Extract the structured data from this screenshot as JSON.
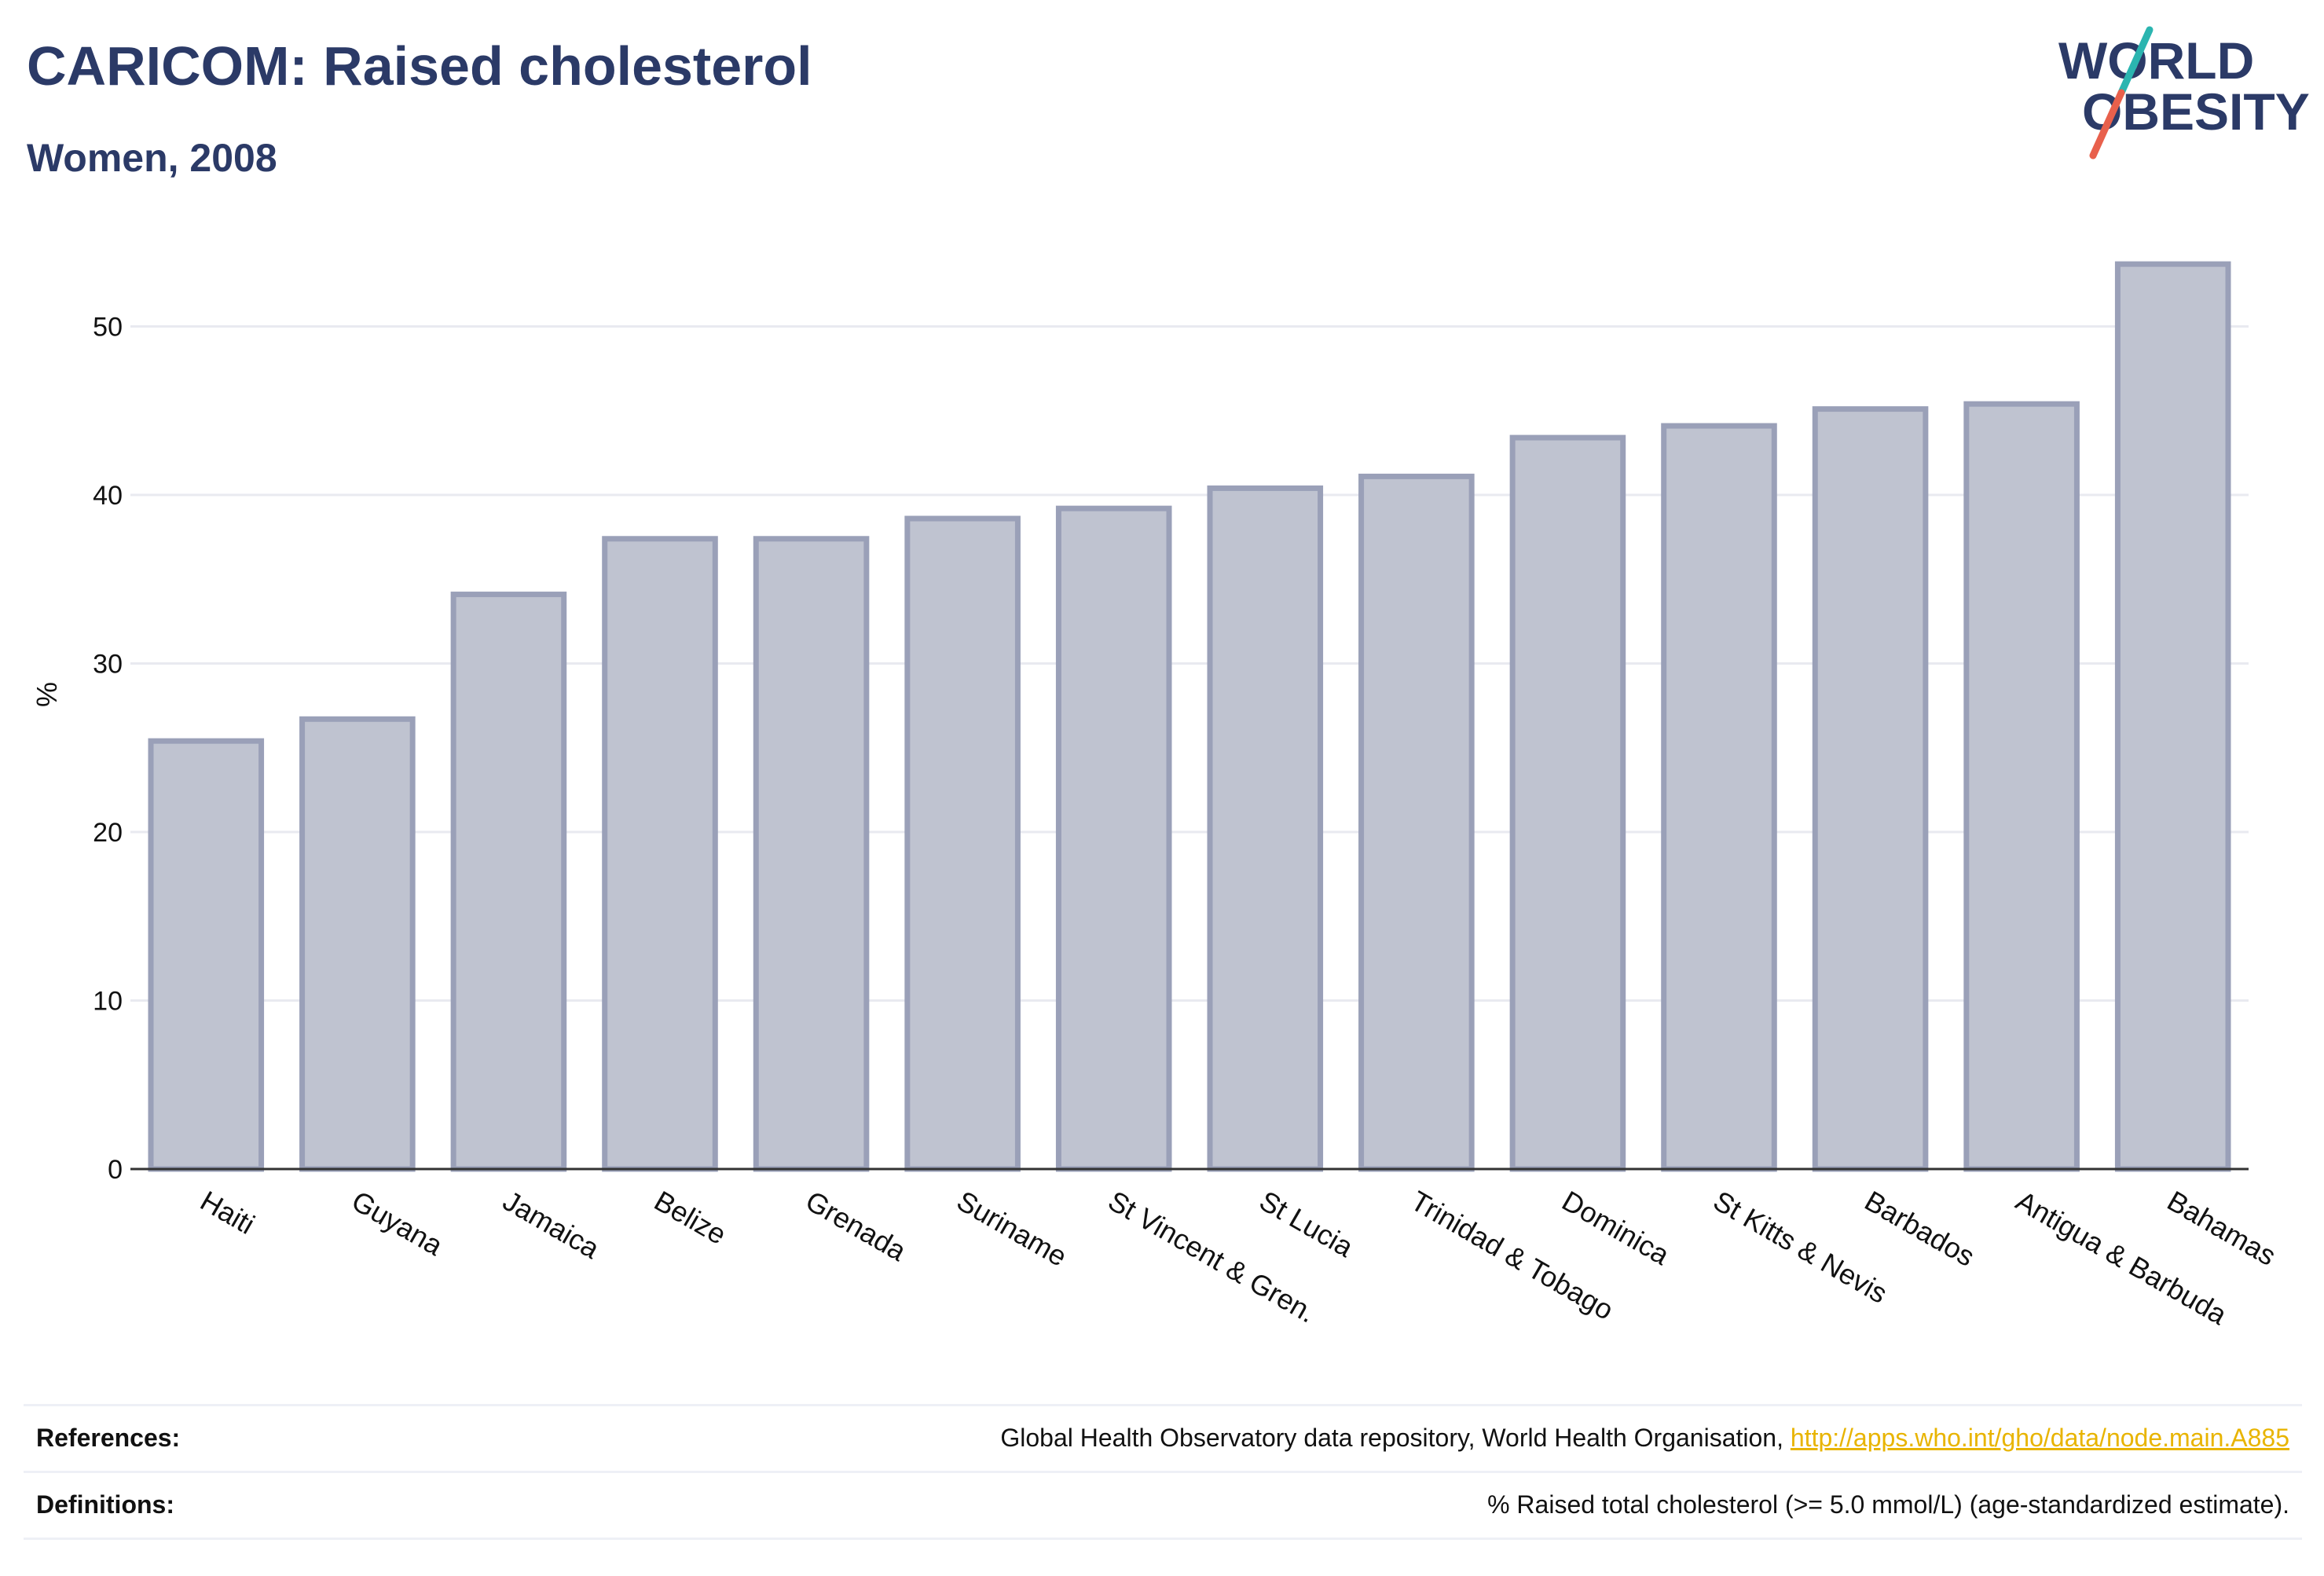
{
  "header": {
    "title": "CARICOM: Raised cholesterol",
    "subtitle": "Women, 2008"
  },
  "logo": {
    "line1": "WORLD",
    "line2": "OBESITY",
    "text_color": "#2b3a67",
    "slash_top_color": "#2bb5b0",
    "slash_bottom_color": "#e8604c"
  },
  "chart_data": {
    "type": "bar",
    "categories": [
      "Haiti",
      "Guyana",
      "Jamaica",
      "Belize",
      "Grenada",
      "Suriname",
      "St Vincent & Gren.",
      "St Lucia",
      "Trinidad & Tobago",
      "Dominica",
      "St Kitts & Nevis",
      "Barbados",
      "Antigua & Barbuda",
      "Bahamas"
    ],
    "values": [
      25.4,
      26.7,
      34.1,
      37.4,
      37.4,
      38.6,
      39.2,
      40.4,
      41.1,
      43.4,
      44.1,
      45.1,
      45.4,
      53.7
    ],
    "xlabel": "",
    "ylabel": "%",
    "ylim": [
      0,
      56
    ],
    "yticks": [
      0,
      10,
      20,
      30,
      40,
      50
    ],
    "grid": true,
    "bar_fill": "#bfc3d0",
    "bar_stroke": "#9aa0b8"
  },
  "footer": {
    "references_label": "References:",
    "references_text": "Global Health Observatory data repository, World Health Organisation, ",
    "references_link": "http://apps.who.int/gho/data/node.main.A885",
    "definitions_label": "Definitions:",
    "definitions_text": "% Raised total cholesterol (>= 5.0 mmol/L) (age-standardized estimate)."
  }
}
